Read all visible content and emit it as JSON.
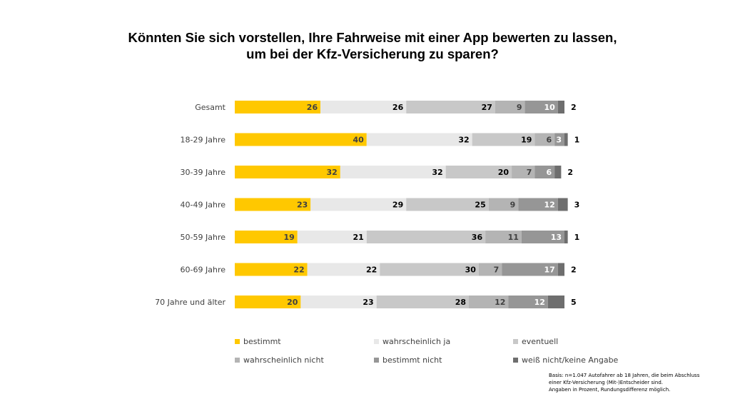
{
  "title": {
    "line1": "Könnten Sie sich vorstellen, Ihre Fahrweise mit einer App bewerten zu lassen,",
    "line2": "um bei der Kfz-Versicherung zu sparen?"
  },
  "note": {
    "line1": "Basis: n=1.047 Autofahrer ab 18 Jahren, die beim Abschluss",
    "line2": "einer Kfz-Versicherung (Mit-)Entscheider sind.",
    "line3": "Angaben in Prozent, Rundungsdifferenz möglich."
  },
  "colors": {
    "bestimmt": "#FFC800",
    "wahrscheinlich_ja": "#E8E8E8",
    "eventuell": "#C8C8C8",
    "wahrscheinlich_nicht": "#B4B4B4",
    "bestimmt_nicht": "#969696",
    "weiss_nicht": "#6E6E6E"
  },
  "chart_data": {
    "type": "bar",
    "orientation": "horizontal",
    "stacked": true,
    "categories": [
      "Gesamt",
      "18-29 Jahre",
      "30-39 Jahre",
      "40-49 Jahre",
      "50-59 Jahre",
      "60-69 Jahre",
      "70 Jahre und älter"
    ],
    "series": [
      {
        "name": "bestimmt",
        "values": [
          26,
          40,
          32,
          23,
          19,
          22,
          20
        ]
      },
      {
        "name": "wahrscheinlich ja",
        "values": [
          26,
          32,
          32,
          29,
          21,
          22,
          23
        ]
      },
      {
        "name": "eventuell",
        "values": [
          27,
          19,
          20,
          25,
          36,
          30,
          28
        ]
      },
      {
        "name": "wahrscheinlich nicht",
        "values": [
          9,
          6,
          7,
          9,
          11,
          7,
          12
        ]
      },
      {
        "name": "bestimmt nicht",
        "values": [
          10,
          3,
          6,
          12,
          13,
          17,
          12
        ]
      },
      {
        "name": "weiß nicht/keine Angabe",
        "values": [
          2,
          1,
          2,
          3,
          1,
          2,
          5
        ]
      }
    ],
    "legend_position": "bottom",
    "grid": false
  }
}
